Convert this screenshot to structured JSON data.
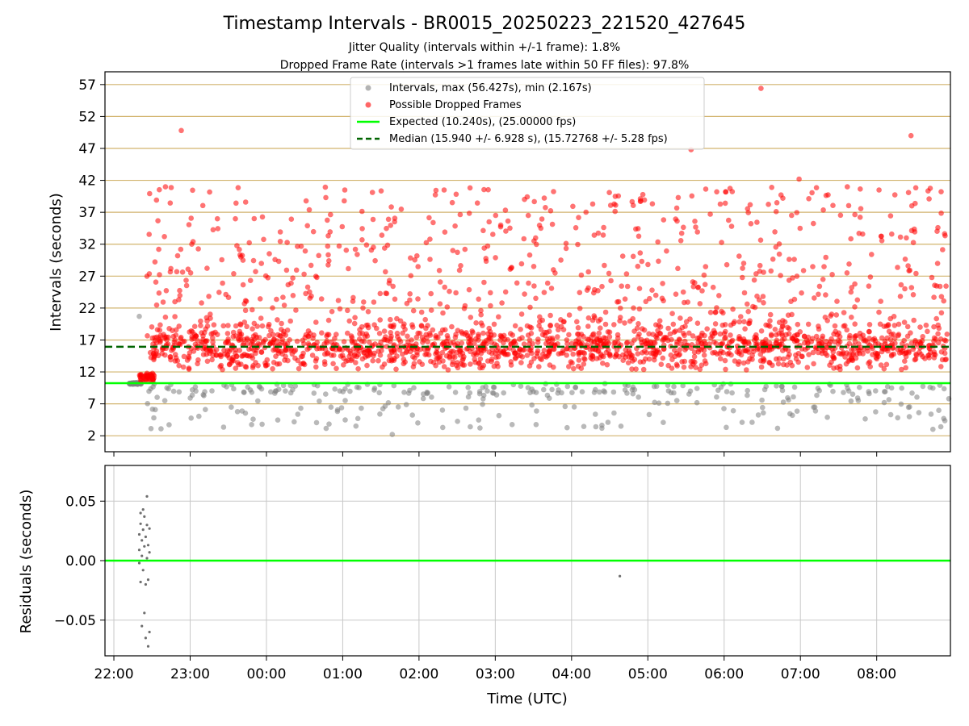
{
  "colors": {
    "background": "#ffffff",
    "normal_points": "#808080",
    "dropped_points": "#ff0000",
    "expected_line": "#00ff00",
    "median_line": "#006400",
    "hgrid_top": "#d2b46e",
    "grid": "#c8c8c8",
    "residual_points": "#6e6e6e"
  },
  "chart_data": [
    {
      "panel": "intervals",
      "type": "scatter",
      "title": "Timestamp Intervals - BR0015_20250223_221520_427645",
      "subtitle_lines": [
        "Jitter Quality (intervals within +/-1 frame): 1.8%",
        "Dropped Frame Rate (intervals >1 frames late within 50 FF files): 97.8%"
      ],
      "ylabel": "Intervals (seconds)",
      "xlabel": "",
      "ylim": [
        -0.5,
        59
      ],
      "yticks": [
        2,
        7,
        12,
        17,
        22,
        27,
        32,
        37,
        42,
        47,
        52,
        57
      ],
      "grid": "horizontal",
      "legend_position": "top-center",
      "legend": [
        {
          "label": "Intervals, max (56.427s), min (2.167s)",
          "marker": "circle",
          "color_key": "normal_points"
        },
        {
          "label": "Possible Dropped Frames",
          "marker": "circle",
          "color_key": "dropped_points"
        },
        {
          "label": "Expected (10.240s), (25.00000 fps)",
          "marker": "line",
          "color_key": "expected_line"
        },
        {
          "label": "Median (15.940 +/- 6.928 s), (15.72768 +/- 5.28 fps)",
          "marker": "dashed-line",
          "color_key": "median_line"
        }
      ],
      "expected_interval": 10.24,
      "median_interval": 15.94,
      "max_interval": 56.427,
      "min_interval": 2.167,
      "series_description": {
        "normal": "grey points mostly between 2 and 10.5 s; a tight cluster near 10.2 s at the start (22:12–22:22)",
        "dropped": "red points dense between 12 and 19 s, spread up to ~42 s, outliers near 49.8, 49 and 56.4 s"
      },
      "notable_points": [
        {
          "time": "22:20",
          "y": 20.7,
          "series": "normal"
        },
        {
          "time": "22:53",
          "y": 49.8,
          "series": "dropped"
        },
        {
          "time": "06:29",
          "y": 56.4,
          "series": "dropped"
        },
        {
          "time": "08:27",
          "y": 49.0,
          "series": "dropped"
        },
        {
          "time": "05:34",
          "y": 46.8,
          "series": "dropped"
        },
        {
          "time": "01:39",
          "y": 2.2,
          "series": "normal"
        },
        {
          "time": "06:59",
          "y": 42.2,
          "series": "dropped"
        }
      ]
    },
    {
      "panel": "residuals",
      "type": "scatter",
      "ylabel": "Residuals (seconds)",
      "xlabel": "Time (UTC)",
      "ylim": [
        -0.08,
        0.08
      ],
      "yticks": [
        "0.05",
        "0.00",
        "−0.05"
      ],
      "ytick_values": [
        0.05,
        0.0,
        -0.05
      ],
      "grid": "both",
      "zero_line": 0.0,
      "points": [
        {
          "time": "22:20",
          "y": 0.022
        },
        {
          "time": "22:20",
          "y": 0.009
        },
        {
          "time": "22:20",
          "y": -0.002
        },
        {
          "time": "22:21",
          "y": 0.031
        },
        {
          "time": "22:21",
          "y": -0.018
        },
        {
          "time": "22:21",
          "y": 0.04
        },
        {
          "time": "22:22",
          "y": 0.017
        },
        {
          "time": "22:22",
          "y": -0.055
        },
        {
          "time": "22:22",
          "y": 0.004
        },
        {
          "time": "22:23",
          "y": 0.043
        },
        {
          "time": "22:23",
          "y": 0.026
        },
        {
          "time": "22:23",
          "y": -0.008
        },
        {
          "time": "22:24",
          "y": 0.012
        },
        {
          "time": "22:24",
          "y": -0.044
        },
        {
          "time": "22:24",
          "y": 0.037
        },
        {
          "time": "22:25",
          "y": -0.065
        },
        {
          "time": "22:25",
          "y": 0.02
        },
        {
          "time": "22:25",
          "y": -0.02
        },
        {
          "time": "22:26",
          "y": 0.054
        },
        {
          "time": "22:26",
          "y": 0.002
        },
        {
          "time": "22:26",
          "y": 0.03
        },
        {
          "time": "22:27",
          "y": -0.072
        },
        {
          "time": "22:27",
          "y": 0.013
        },
        {
          "time": "22:27",
          "y": -0.016
        },
        {
          "time": "22:28",
          "y": 0.027
        },
        {
          "time": "22:28",
          "y": -0.06
        },
        {
          "time": "22:28",
          "y": 0.007
        },
        {
          "time": "04:38",
          "y": -0.013
        }
      ]
    }
  ],
  "x_axis": {
    "label": "Time (UTC)",
    "range": [
      "21:53",
      "08:58"
    ],
    "ticks": [
      "22:00",
      "23:00",
      "00:00",
      "01:00",
      "02:00",
      "03:00",
      "04:00",
      "05:00",
      "06:00",
      "07:00",
      "08:00"
    ],
    "grid": "vertical"
  }
}
